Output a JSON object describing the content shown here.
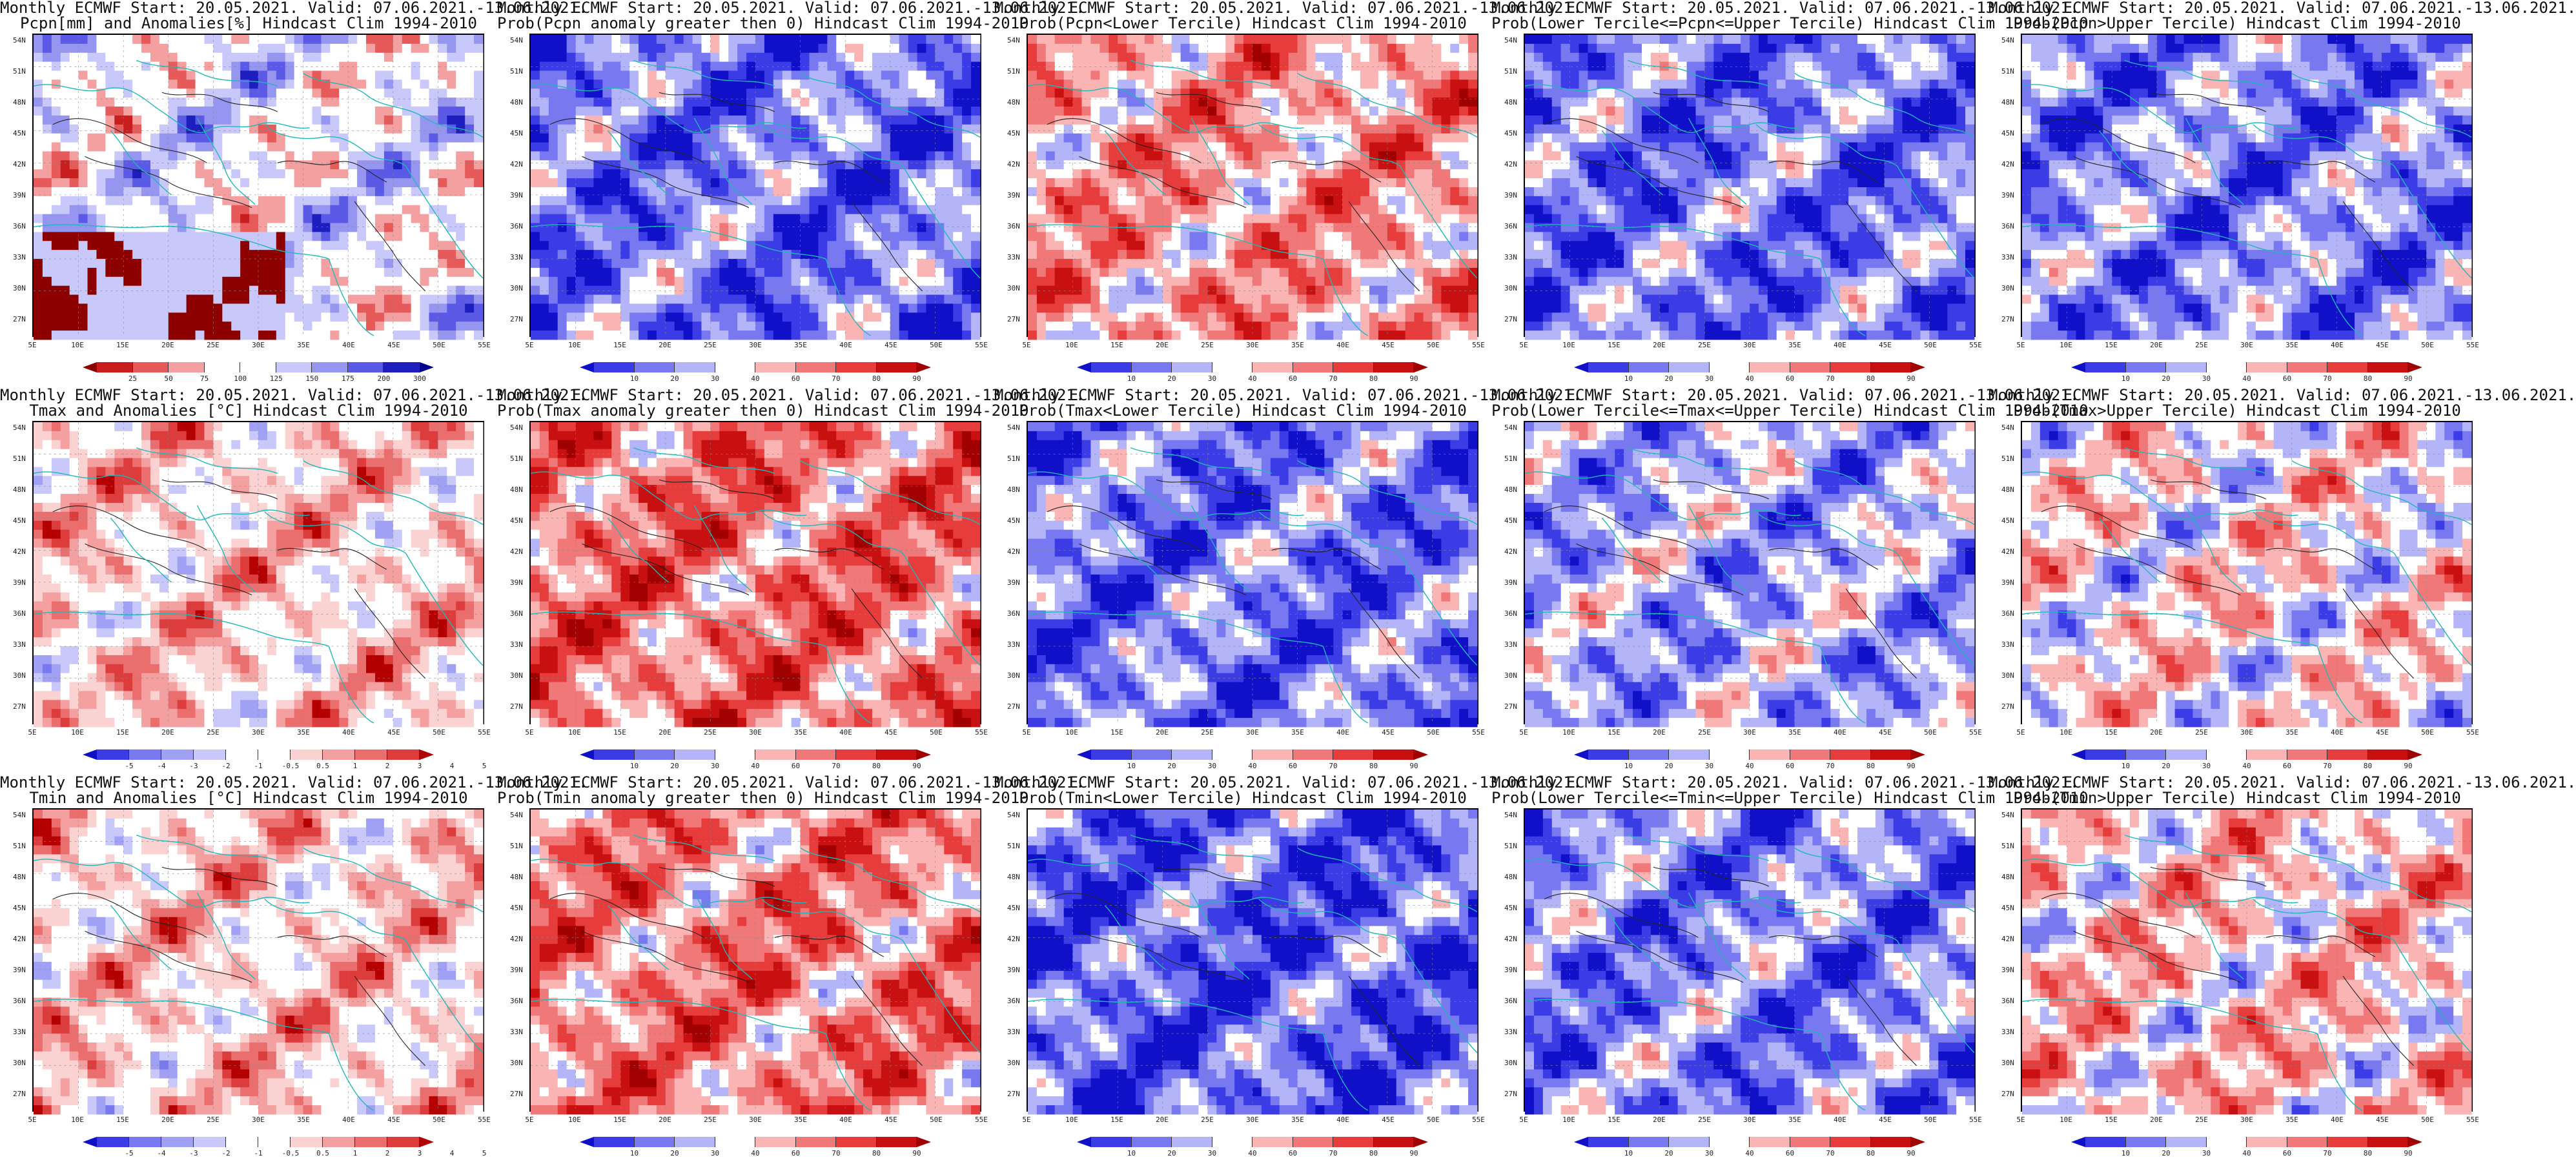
{
  "lat_labels": [
    "54N",
    "51N",
    "48N",
    "45N",
    "42N",
    "39N",
    "36N",
    "33N",
    "30N",
    "27N"
  ],
  "lon_labels": [
    "5E",
    "10E",
    "15E",
    "20E",
    "25E",
    "30E",
    "35E",
    "40E",
    "45E",
    "50E",
    "55E"
  ],
  "palettes": {
    "prob": [
      "#1010c8",
      "#3c3ce6",
      "#7878f0",
      "#b4b4f8",
      "#ffffff",
      "#fab4b4",
      "#f07878",
      "#e63c3c",
      "#c81010",
      "#a00000"
    ],
    "pcpn": [
      "#8c0000",
      "#c81e1e",
      "#e65a5a",
      "#f5a0a0",
      "#ffffff",
      "#ffffff",
      "#c8c8fa",
      "#9696f0",
      "#5a5ae6",
      "#1e1ebe",
      "#00008c"
    ],
    "temp": [
      "#1010c8",
      "#3c3ce6",
      "#7878f0",
      "#a0a0f5",
      "#c8c8fa",
      "#ffffff",
      "#ffffff",
      "#fad2d2",
      "#f5a0a0",
      "#eb6e6e",
      "#dc3c3c",
      "#b40000"
    ]
  },
  "ticks": {
    "prob": [
      "10",
      "20",
      "30",
      "40",
      "60",
      "70",
      "80",
      "90"
    ],
    "pcpn": [
      "25",
      "50",
      "75",
      "100",
      "125",
      "150",
      "175",
      "200",
      "300"
    ],
    "temp": [
      "-5",
      "-4",
      "-3",
      "-2",
      "-1",
      "-0.5",
      "0.5",
      "1",
      "2",
      "3",
      "4",
      "5"
    ]
  },
  "panels": [
    {
      "title1": "Monthly ECMWF Start: 20.05.2021. Valid: 07.06.2021.-13.06.2021.",
      "title2": "Pcpn[mm] and Anomalies[%] Hindcast Clim 1994-2010",
      "pal": "pcpn",
      "bias": 0
    },
    {
      "title1": "Monthly ECMWF Start: 20.05.2021. Valid: 07.06.2021.-13.06.2021.",
      "title2": "Prob(Pcpn anomaly greater then 0) Hindcast Clim 1994-2010",
      "pal": "prob",
      "bias": -0.55
    },
    {
      "title1": "Monthly ECMWF Start: 20.05.2021. Valid: 07.06.2021.-13.06.2021.",
      "title2": "Prob(Pcpn<Lower Tercile) Hindcast Clim 1994-2010",
      "pal": "prob",
      "bias": 0.2
    },
    {
      "title1": "Monthly ECMWF Start: 20.05.2021. Valid: 07.06.2021.-13.06.2021.",
      "title2": "Prob(Lower Tercile<=Pcpn<=Upper Tercile) Hindcast Clim 1994-2010",
      "pal": "prob",
      "bias": -0.55
    },
    {
      "title1": "Monthly ECMWF Start: 20.05.2021. Valid: 07.06.2021.-13.06.2021.",
      "title2": "Prob(Pcpn>Upper Tercile) Hindcast Clim 1994-2010",
      "pal": "prob",
      "bias": -0.5
    },
    {
      "title1": "Monthly ECMWF Start: 20.05.2021. Valid: 07.06.2021.-13.06.2021.",
      "title2": "Tmax and Anomalies [°C] Hindcast Clim 1994-2010",
      "pal": "temp",
      "bias": 0.25
    },
    {
      "title1": "Monthly ECMWF Start: 20.05.2021. Valid: 07.06.2021.-13.06.2021.",
      "title2": "Prob(Tmax anomaly greater then 0) Hindcast Clim 1994-2010",
      "pal": "prob",
      "bias": 0.35
    },
    {
      "title1": "Monthly ECMWF Start: 20.05.2021. Valid: 07.06.2021.-13.06.2021.",
      "title2": "Prob(Tmax<Lower Tercile) Hindcast Clim 1994-2010",
      "pal": "prob",
      "bias": -0.55
    },
    {
      "title1": "Monthly ECMWF Start: 20.05.2021. Valid: 07.06.2021.-13.06.2021.",
      "title2": "Prob(Lower Tercile<=Tmax<=Upper Tercile) Hindcast Clim 1994-2010",
      "pal": "prob",
      "bias": -0.35
    },
    {
      "title1": "Monthly ECMWF Start: 20.05.2021. Valid: 07.06.2021.-13.06.2021.",
      "title2": "Prob(Tmax>Upper Tercile) Hindcast Clim 1994-2010",
      "pal": "prob",
      "bias": -0.05
    },
    {
      "title1": "Monthly ECMWF Start: 20.05.2021. Valid: 07.06.2021.-13.06.2021.",
      "title2": "Tmin and Anomalies [°C] Hindcast Clim 1994-2010",
      "pal": "temp",
      "bias": 0.25
    },
    {
      "title1": "Monthly ECMWF Start: 20.05.2021. Valid: 07.06.2021.-13.06.2021.",
      "title2": "Prob(Tmin anomaly greater then 0) Hindcast Clim 1994-2010",
      "pal": "prob",
      "bias": 0.3
    },
    {
      "title1": "Monthly ECMWF Start: 20.05.2021. Valid: 07.06.2021.-13.06.2021.",
      "title2": "Prob(Tmin<Lower Tercile) Hindcast Clim 1994-2010",
      "pal": "prob",
      "bias": -0.65
    },
    {
      "title1": "Monthly ECMWF Start: 20.05.2021. Valid: 07.06.2021.-13.06.2021.",
      "title2": "Prob(Lower Tercile<=Tmin<=Upper Tercile) Hindcast Clim 1994-2010",
      "pal": "prob",
      "bias": -0.5
    },
    {
      "title1": "Monthly ECMWF Start: 20.05.2021. Valid: 07.06.2021.-13.06.2021.",
      "title2": "Prob(Tmin>Upper Tercile) Hindcast Clim 1994-2010",
      "pal": "prob",
      "bias": 0.05
    }
  ]
}
